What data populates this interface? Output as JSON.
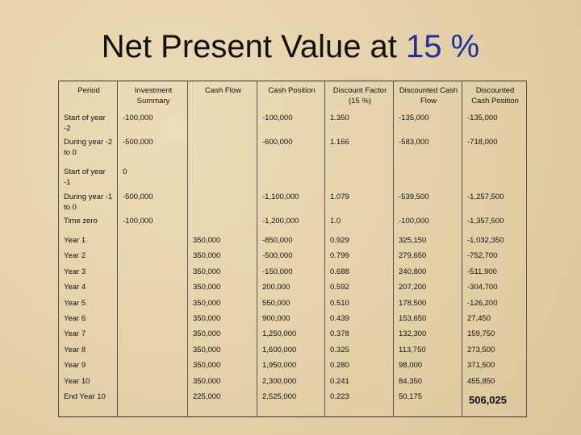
{
  "title": {
    "text": "Net Present Value at",
    "rate": "15 %"
  },
  "table": {
    "headers": [
      "Period",
      "Investment Summary",
      "Cash Flow",
      "Cash Position",
      "Discount Factor (15 %)",
      "Discounted Cash Flow",
      "Discounted Cash Position"
    ],
    "rows": [
      [
        "Start of year -2",
        "-100,000",
        null,
        "-100,000",
        "1.350",
        "-135,000",
        "-135,000"
      ],
      [
        "During year -2 to 0",
        "-500,000",
        null,
        "-600,000",
        "1.166",
        "-583,000",
        "-718,000"
      ],
      [
        "Start of year -1",
        "0",
        null,
        null,
        null,
        null,
        null
      ],
      [
        "During year -1 to 0",
        "-500,000",
        null,
        "-1,100,000",
        "1.079",
        "-539,500",
        "-1,257,500"
      ],
      [
        "Time zero",
        "-100,000",
        null,
        "-1,200,000",
        "1.0",
        "-100,000",
        "-1,357,500"
      ],
      [
        "Year 1",
        null,
        "350,000",
        "-850,000",
        "0.929",
        "325,150",
        "-1,032,350"
      ],
      [
        "Year 2",
        null,
        "350,000",
        "-500,000",
        "0.799",
        "279,650",
        "-752,700"
      ],
      [
        "Year 3",
        null,
        "350,000",
        "-150,000",
        "0.688",
        "240,800",
        "-511,900"
      ],
      [
        "Year 4",
        null,
        "350,000",
        "200,000",
        "0.592",
        "207,200",
        "-304,700"
      ],
      [
        "Year 5",
        null,
        "350,000",
        "550,000",
        "0.510",
        "178,500",
        "-126,200"
      ],
      [
        "Year 6",
        null,
        "350,000",
        "900,000",
        "0.439",
        "153,650",
        "27,450"
      ],
      [
        "Year 7",
        null,
        "350,000",
        "1,250,000",
        "0.378",
        "132,300",
        "159,750"
      ],
      [
        "Year 8",
        null,
        "350,000",
        "1,600,000",
        "0.325",
        "113,750",
        "273,500"
      ],
      [
        "Year 9",
        null,
        "350,000",
        "1,950,000",
        "0.280",
        "98,000",
        "371,500"
      ],
      [
        "Year 10",
        null,
        "350,000",
        "2,300,000",
        "0.241",
        "84,350",
        "455,850"
      ],
      [
        "End Year 10",
        null,
        "225,000",
        "2,525,000",
        "0.223",
        "50,175",
        "506,025"
      ]
    ]
  }
}
